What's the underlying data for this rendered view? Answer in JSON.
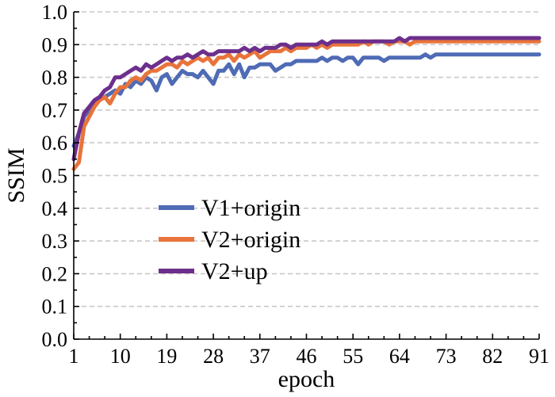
{
  "chart_data": {
    "type": "line",
    "title": "",
    "xlabel": "epoch",
    "ylabel": "SSIM",
    "xlim": [
      1,
      91
    ],
    "ylim": [
      0.0,
      1.0
    ],
    "grid": true,
    "legend_position": "center-left",
    "x_ticks": [
      1,
      10,
      19,
      28,
      37,
      46,
      55,
      64,
      73,
      82,
      91
    ],
    "x_tick_labels": [
      "1",
      "10",
      "19",
      "28",
      "37",
      "46",
      "55",
      "64",
      "73",
      "82",
      "91"
    ],
    "y_ticks": [
      0.0,
      0.1,
      0.2,
      0.3,
      0.4,
      0.5,
      0.6,
      0.7,
      0.8,
      0.9,
      1.0
    ],
    "y_tick_labels": [
      "0.0",
      "0.1",
      "0.2",
      "0.3",
      "0.4",
      "0.5",
      "0.6",
      "0.7",
      "0.8",
      "0.9",
      "1.0"
    ],
    "series": [
      {
        "name": "V1+origin",
        "color": "#4f6bb5",
        "x": [
          1,
          2,
          3,
          4,
          5,
          6,
          7,
          8,
          9,
          10,
          11,
          12,
          13,
          14,
          15,
          16,
          17,
          18,
          19,
          20,
          21,
          22,
          23,
          24,
          25,
          26,
          27,
          28,
          29,
          30,
          31,
          32,
          33,
          34,
          35,
          36,
          37,
          38,
          39,
          40,
          41,
          42,
          43,
          44,
          45,
          46,
          47,
          48,
          49,
          50,
          51,
          52,
          53,
          54,
          55,
          56,
          57,
          58,
          59,
          60,
          61,
          62,
          63,
          64,
          65,
          66,
          67,
          68,
          69,
          70,
          71,
          72,
          73,
          74,
          75,
          76,
          77,
          78,
          79,
          80,
          81,
          82,
          83,
          84,
          85,
          86,
          87,
          88,
          89,
          90,
          91
        ],
        "values": [
          0.59,
          0.63,
          0.68,
          0.7,
          0.72,
          0.73,
          0.74,
          0.75,
          0.76,
          0.75,
          0.78,
          0.77,
          0.79,
          0.78,
          0.8,
          0.79,
          0.76,
          0.8,
          0.81,
          0.78,
          0.8,
          0.82,
          0.81,
          0.81,
          0.8,
          0.82,
          0.8,
          0.78,
          0.82,
          0.82,
          0.84,
          0.81,
          0.84,
          0.8,
          0.83,
          0.83,
          0.84,
          0.84,
          0.84,
          0.82,
          0.83,
          0.84,
          0.84,
          0.85,
          0.85,
          0.85,
          0.85,
          0.85,
          0.86,
          0.85,
          0.86,
          0.86,
          0.85,
          0.86,
          0.86,
          0.84,
          0.86,
          0.86,
          0.86,
          0.86,
          0.85,
          0.86,
          0.86,
          0.86,
          0.86,
          0.86,
          0.86,
          0.86,
          0.87,
          0.86,
          0.87,
          0.87,
          0.87,
          0.87,
          0.87,
          0.87,
          0.87,
          0.87,
          0.87,
          0.87,
          0.87,
          0.87,
          0.87,
          0.87,
          0.87,
          0.87,
          0.87,
          0.87,
          0.87,
          0.87,
          0.87
        ]
      },
      {
        "name": "V2+origin",
        "color": "#e8743b",
        "x": [
          1,
          2,
          3,
          4,
          5,
          6,
          7,
          8,
          9,
          10,
          11,
          12,
          13,
          14,
          15,
          16,
          17,
          18,
          19,
          20,
          21,
          22,
          23,
          24,
          25,
          26,
          27,
          28,
          29,
          30,
          31,
          32,
          33,
          34,
          35,
          36,
          37,
          38,
          39,
          40,
          41,
          42,
          43,
          44,
          45,
          46,
          47,
          48,
          49,
          50,
          51,
          52,
          53,
          54,
          55,
          56,
          57,
          58,
          59,
          60,
          61,
          62,
          63,
          64,
          65,
          66,
          67,
          68,
          69,
          70,
          71,
          72,
          73,
          74,
          75,
          76,
          77,
          78,
          79,
          80,
          81,
          82,
          83,
          84,
          85,
          86,
          87,
          88,
          89,
          90,
          91
        ],
        "values": [
          0.52,
          0.54,
          0.65,
          0.68,
          0.71,
          0.73,
          0.74,
          0.72,
          0.75,
          0.77,
          0.77,
          0.79,
          0.8,
          0.79,
          0.81,
          0.82,
          0.82,
          0.83,
          0.84,
          0.84,
          0.83,
          0.85,
          0.84,
          0.85,
          0.86,
          0.85,
          0.86,
          0.84,
          0.86,
          0.86,
          0.87,
          0.85,
          0.87,
          0.86,
          0.87,
          0.88,
          0.86,
          0.87,
          0.88,
          0.88,
          0.88,
          0.89,
          0.88,
          0.89,
          0.89,
          0.89,
          0.9,
          0.89,
          0.9,
          0.89,
          0.9,
          0.9,
          0.9,
          0.9,
          0.9,
          0.9,
          0.91,
          0.9,
          0.91,
          0.91,
          0.91,
          0.9,
          0.91,
          0.91,
          0.91,
          0.9,
          0.91,
          0.91,
          0.91,
          0.91,
          0.91,
          0.91,
          0.91,
          0.91,
          0.91,
          0.91,
          0.91,
          0.91,
          0.91,
          0.91,
          0.91,
          0.91,
          0.91,
          0.91,
          0.91,
          0.91,
          0.91,
          0.91,
          0.91,
          0.91,
          0.91
        ]
      },
      {
        "name": "V2+up",
        "color": "#6d2f8c",
        "x": [
          1,
          2,
          3,
          4,
          5,
          6,
          7,
          8,
          9,
          10,
          11,
          12,
          13,
          14,
          15,
          16,
          17,
          18,
          19,
          20,
          21,
          22,
          23,
          24,
          25,
          26,
          27,
          28,
          29,
          30,
          31,
          32,
          33,
          34,
          35,
          36,
          37,
          38,
          39,
          40,
          41,
          42,
          43,
          44,
          45,
          46,
          47,
          48,
          49,
          50,
          51,
          52,
          53,
          54,
          55,
          56,
          57,
          58,
          59,
          60,
          61,
          62,
          63,
          64,
          65,
          66,
          67,
          68,
          69,
          70,
          71,
          72,
          73,
          74,
          75,
          76,
          77,
          78,
          79,
          80,
          81,
          82,
          83,
          84,
          85,
          86,
          87,
          88,
          89,
          90,
          91
        ],
        "values": [
          0.55,
          0.63,
          0.69,
          0.71,
          0.73,
          0.74,
          0.76,
          0.77,
          0.8,
          0.8,
          0.81,
          0.82,
          0.83,
          0.82,
          0.84,
          0.83,
          0.84,
          0.85,
          0.86,
          0.85,
          0.86,
          0.86,
          0.87,
          0.86,
          0.87,
          0.88,
          0.87,
          0.87,
          0.88,
          0.88,
          0.88,
          0.88,
          0.88,
          0.89,
          0.88,
          0.89,
          0.88,
          0.89,
          0.89,
          0.89,
          0.9,
          0.9,
          0.89,
          0.9,
          0.9,
          0.9,
          0.9,
          0.9,
          0.91,
          0.9,
          0.91,
          0.91,
          0.91,
          0.91,
          0.91,
          0.91,
          0.91,
          0.91,
          0.91,
          0.91,
          0.91,
          0.91,
          0.91,
          0.92,
          0.91,
          0.92,
          0.92,
          0.92,
          0.92,
          0.92,
          0.92,
          0.92,
          0.92,
          0.92,
          0.92,
          0.92,
          0.92,
          0.92,
          0.92,
          0.92,
          0.92,
          0.92,
          0.92,
          0.92,
          0.92,
          0.92,
          0.92,
          0.92,
          0.92,
          0.92,
          0.92
        ]
      }
    ]
  }
}
